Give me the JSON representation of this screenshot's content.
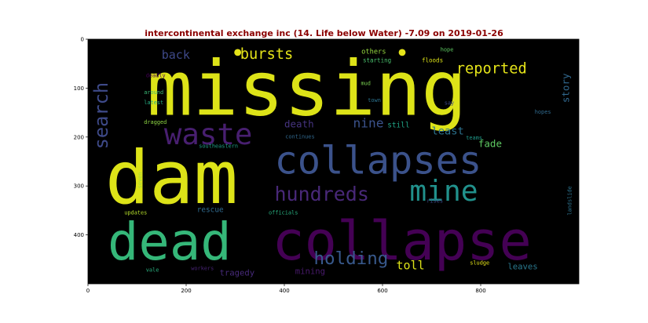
{
  "chart_data": {
    "type": "wordcloud",
    "title": "intercontinental exchange inc (14. Life below Water) -7.09 on 2019-01-26",
    "xlim": [
      0,
      1000
    ],
    "ylim": [
      500,
      0
    ],
    "x_ticks": [
      0,
      200,
      400,
      600,
      800
    ],
    "y_ticks": [
      0,
      100,
      200,
      300,
      400
    ],
    "background": "#000000",
    "words": [
      {
        "text": "missing",
        "x": 120,
        "y": 155,
        "size": 155,
        "color": "#dde318",
        "rot": 0
      },
      {
        "text": "dam",
        "x": 35,
        "y": 335,
        "size": 150,
        "color": "#dde318",
        "rot": 0
      },
      {
        "text": "collapse",
        "x": 375,
        "y": 450,
        "size": 110,
        "color": "#440154",
        "rot": 0
      },
      {
        "text": "dead",
        "x": 40,
        "y": 450,
        "size": 105,
        "color": "#35b779",
        "rot": 0
      },
      {
        "text": "collapses",
        "x": 380,
        "y": 275,
        "size": 78,
        "color": "#3b528b",
        "rot": 0
      },
      {
        "text": "mine",
        "x": 655,
        "y": 330,
        "size": 58,
        "color": "#21918c",
        "rot": 0
      },
      {
        "text": "waste",
        "x": 155,
        "y": 215,
        "size": 60,
        "color": "#481f70",
        "rot": 0
      },
      {
        "text": "hundreds",
        "x": 380,
        "y": 330,
        "size": 40,
        "color": "#482878",
        "rot": 0
      },
      {
        "text": "holding",
        "x": 460,
        "y": 460,
        "size": 36,
        "color": "#38598c",
        "rot": 0
      },
      {
        "text": "reported",
        "x": 750,
        "y": 70,
        "size": 30,
        "color": "#e5e419",
        "rot": 0
      },
      {
        "text": "bursts",
        "x": 310,
        "y": 40,
        "size": 30,
        "color": "#e5e419",
        "rot": 0
      },
      {
        "text": "search",
        "x": 40,
        "y": 225,
        "size": 38,
        "color": "#3e4a89",
        "rot": -90
      },
      {
        "text": "nine",
        "x": 540,
        "y": 180,
        "size": 26,
        "color": "#3b528b",
        "rot": 0
      },
      {
        "text": "back",
        "x": 150,
        "y": 40,
        "size": 24,
        "color": "#3e4989",
        "rot": 0
      },
      {
        "text": "death",
        "x": 400,
        "y": 180,
        "size": 20,
        "color": "#463480",
        "rot": 0
      },
      {
        "text": "least",
        "x": 700,
        "y": 195,
        "size": 22,
        "color": "#2c728e",
        "rot": 0
      },
      {
        "text": "fade",
        "x": 795,
        "y": 220,
        "size": 20,
        "color": "#5ec962",
        "rot": 0
      },
      {
        "text": "story",
        "x": 980,
        "y": 130,
        "size": 20,
        "color": "#31688e",
        "rot": -90
      },
      {
        "text": "toll",
        "x": 628,
        "y": 470,
        "size": 24,
        "color": "#dde318",
        "rot": 0
      },
      {
        "text": "mining",
        "x": 422,
        "y": 480,
        "size": 17,
        "color": "#481a6c",
        "rot": 0
      },
      {
        "text": "tragedy",
        "x": 268,
        "y": 483,
        "size": 17,
        "color": "#472a7a",
        "rot": 0
      },
      {
        "text": "leaves",
        "x": 855,
        "y": 470,
        "size": 17,
        "color": "#2a788e",
        "rot": 0
      },
      {
        "text": "still",
        "x": 610,
        "y": 180,
        "size": 15,
        "color": "#20a486",
        "rot": 0
      },
      {
        "text": "rescue",
        "x": 222,
        "y": 353,
        "size": 15,
        "color": "#306a8e",
        "rot": 0
      },
      {
        "text": "others",
        "x": 557,
        "y": 30,
        "size": 14,
        "color": "#95d840",
        "rot": 0
      },
      {
        "text": "starting",
        "x": 560,
        "y": 47,
        "size": 12,
        "color": "#4ac16d",
        "rot": 0
      },
      {
        "text": "floods",
        "x": 680,
        "y": 47,
        "size": 12,
        "color": "#dde318",
        "rot": 0
      },
      {
        "text": "hope",
        "x": 718,
        "y": 25,
        "size": 11,
        "color": "#5ec962",
        "rot": 0
      },
      {
        "text": "deadly",
        "x": 118,
        "y": 78,
        "size": 11,
        "color": "#440154",
        "rot": 0
      },
      {
        "text": "mud",
        "x": 556,
        "y": 94,
        "size": 11,
        "color": "#7ad151",
        "rot": 0
      },
      {
        "text": "around",
        "x": 114,
        "y": 112,
        "size": 11,
        "color": "#3aba76",
        "rot": 0
      },
      {
        "text": "latest",
        "x": 114,
        "y": 133,
        "size": 11,
        "color": "#28ae80",
        "rot": 0
      },
      {
        "text": "town",
        "x": 570,
        "y": 128,
        "size": 11,
        "color": "#2c728e",
        "rot": 0
      },
      {
        "text": "say",
        "x": 726,
        "y": 134,
        "size": 11,
        "color": "#3e4989",
        "rot": 0
      },
      {
        "text": "hopes",
        "x": 910,
        "y": 152,
        "size": 11,
        "color": "#306a8e",
        "rot": 0
      },
      {
        "text": "dragged",
        "x": 114,
        "y": 173,
        "size": 11,
        "color": "#8fd744",
        "rot": 0
      },
      {
        "text": "continues",
        "x": 402,
        "y": 203,
        "size": 11,
        "color": "#31688e",
        "rot": 0
      },
      {
        "text": "teams",
        "x": 770,
        "y": 205,
        "size": 11,
        "color": "#1f998a",
        "rot": 0
      },
      {
        "text": "southeastern",
        "x": 226,
        "y": 222,
        "size": 11,
        "color": "#1fa088",
        "rot": 0
      },
      {
        "text": "seven",
        "x": 110,
        "y": 305,
        "size": 11,
        "color": "#a0da39",
        "rot": -90
      },
      {
        "text": "landslide",
        "x": 985,
        "y": 360,
        "size": 11,
        "color": "#2c728e",
        "rot": -90
      },
      {
        "text": "rises",
        "x": 690,
        "y": 334,
        "size": 11,
        "color": "#3e4989",
        "rot": 0
      },
      {
        "text": "updates",
        "x": 74,
        "y": 358,
        "size": 11,
        "color": "#b5de2b",
        "rot": 0
      },
      {
        "text": "officials",
        "x": 368,
        "y": 358,
        "size": 11,
        "color": "#29af7f",
        "rot": 0
      },
      {
        "text": "sludge",
        "x": 778,
        "y": 461,
        "size": 11,
        "color": "#e5e419",
        "rot": 0
      },
      {
        "text": "vale",
        "x": 118,
        "y": 475,
        "size": 11,
        "color": "#2ab07f",
        "rot": 0
      },
      {
        "text": "workers",
        "x": 210,
        "y": 472,
        "size": 11,
        "color": "#482475",
        "rot": 0
      }
    ],
    "dots": [
      {
        "x": 305,
        "y": 27,
        "r": 7,
        "color": "#e5e419"
      },
      {
        "x": 640,
        "y": 27,
        "r": 7,
        "color": "#e5e419"
      }
    ]
  }
}
